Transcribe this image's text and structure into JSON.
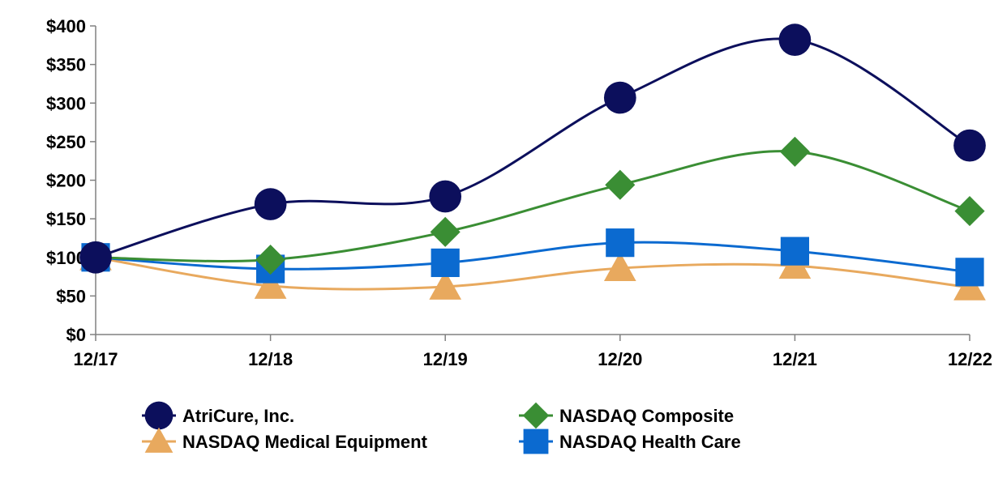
{
  "chart_data": {
    "type": "line",
    "title": "",
    "xlabel": "",
    "ylabel": "",
    "categories": [
      "12/17",
      "12/18",
      "12/19",
      "12/20",
      "12/21",
      "12/22"
    ],
    "y_ticks": [
      "$0",
      "$50",
      "$100",
      "$150",
      "$200",
      "$250",
      "$300",
      "$350",
      "$400"
    ],
    "ylim": [
      0,
      400
    ],
    "grid": false,
    "legend_position": "bottom",
    "series": [
      {
        "name": "AtriCure, Inc.",
        "color": "#0c0f5c",
        "marker": "circle",
        "values": [
          100,
          169,
          179,
          307,
          382,
          245
        ]
      },
      {
        "name": "NASDAQ Composite",
        "color": "#3a8e34",
        "marker": "diamond",
        "values": [
          100,
          97,
          133,
          194,
          237,
          160
        ]
      },
      {
        "name": "NASDAQ Medical Equipment",
        "color": "#e8a95e",
        "marker": "triangle",
        "values": [
          100,
          63,
          62,
          86,
          89,
          61
        ]
      },
      {
        "name": "NASDAQ Health Care",
        "color": "#0b6ad0",
        "marker": "square",
        "values": [
          100,
          85,
          93,
          119,
          108,
          81
        ]
      }
    ]
  }
}
